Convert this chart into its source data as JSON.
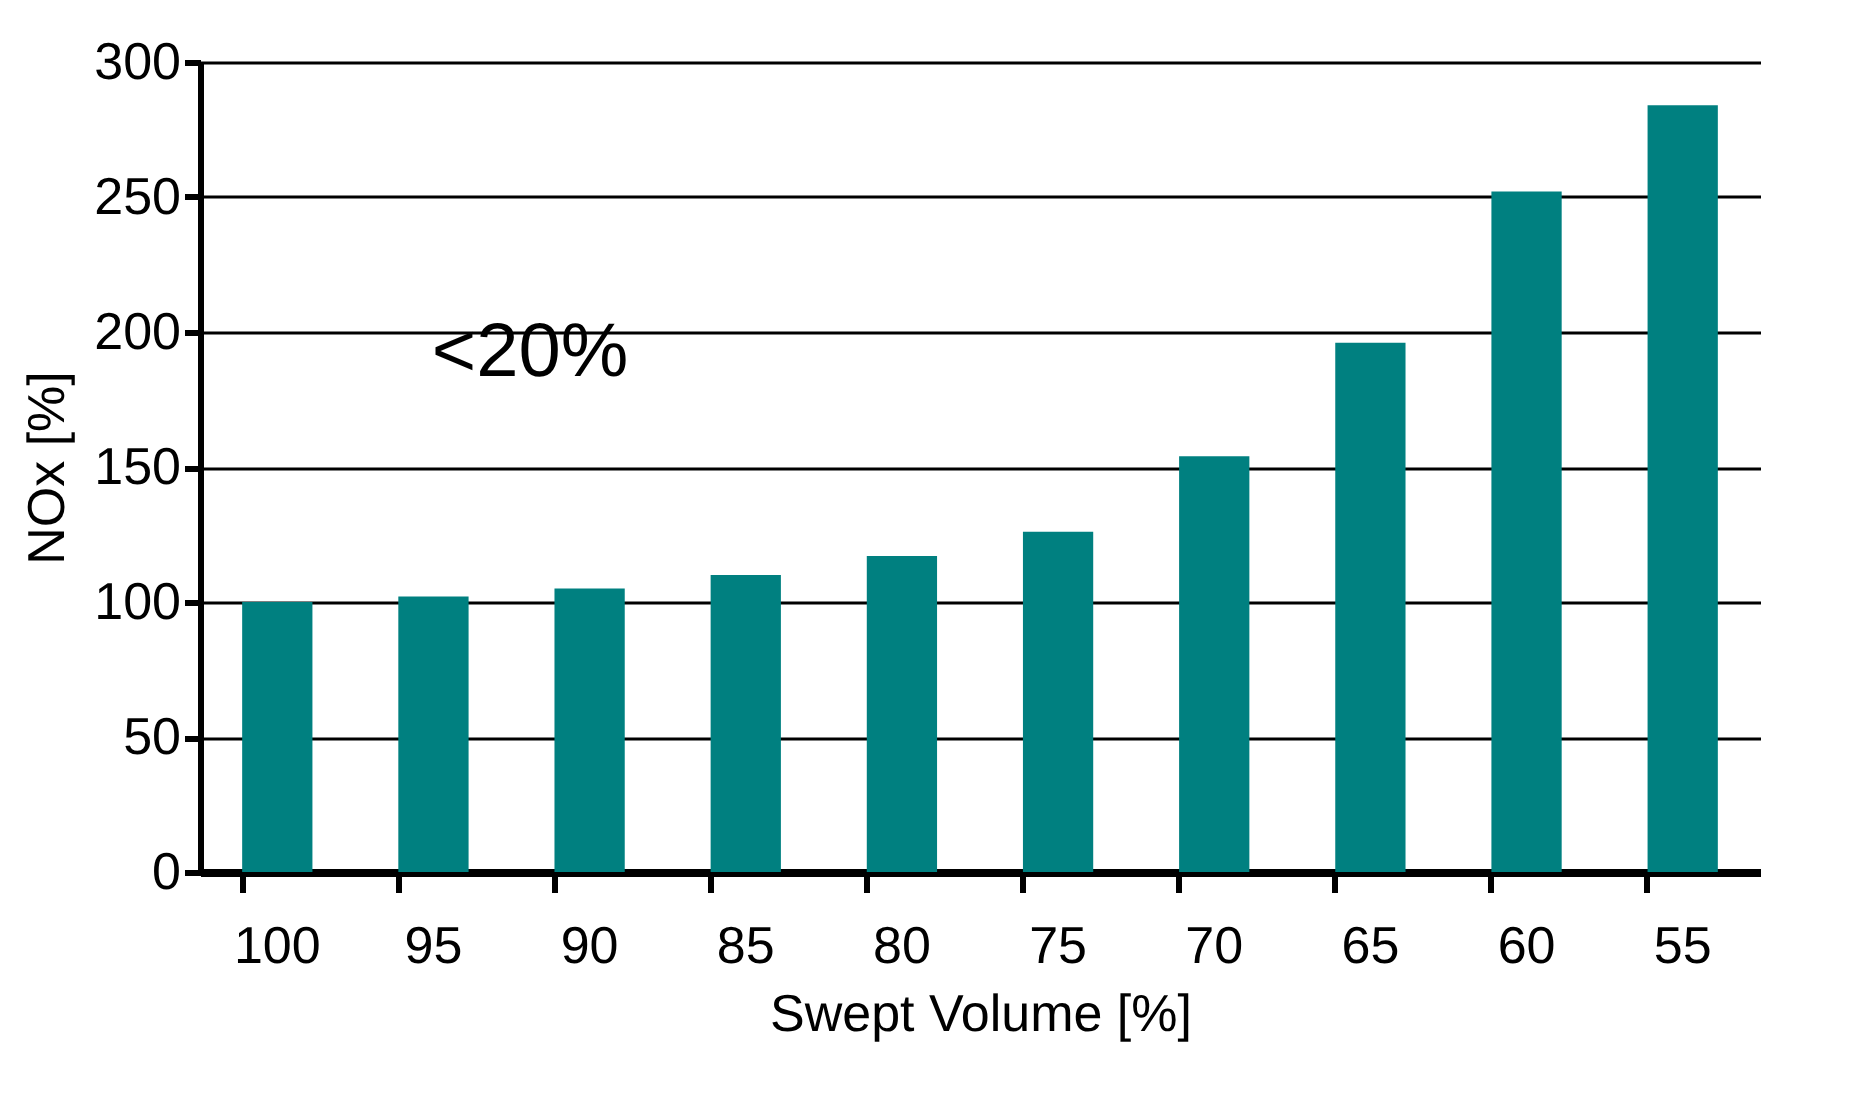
{
  "chart_data": {
    "type": "bar",
    "xlabel": "Swept Volume [%]",
    "ylabel": "NOx [%]",
    "categories": [
      "100",
      "95",
      "90",
      "85",
      "80",
      "75",
      "70",
      "65",
      "60",
      "55"
    ],
    "values": [
      100,
      102,
      105,
      110,
      117,
      126,
      154,
      196,
      252,
      284
    ],
    "color": "#008080",
    "ylim": [
      0,
      300
    ],
    "yticks": [
      0,
      50,
      100,
      150,
      200,
      250,
      300
    ],
    "grid": "y",
    "annotations": [
      "<20%"
    ]
  }
}
